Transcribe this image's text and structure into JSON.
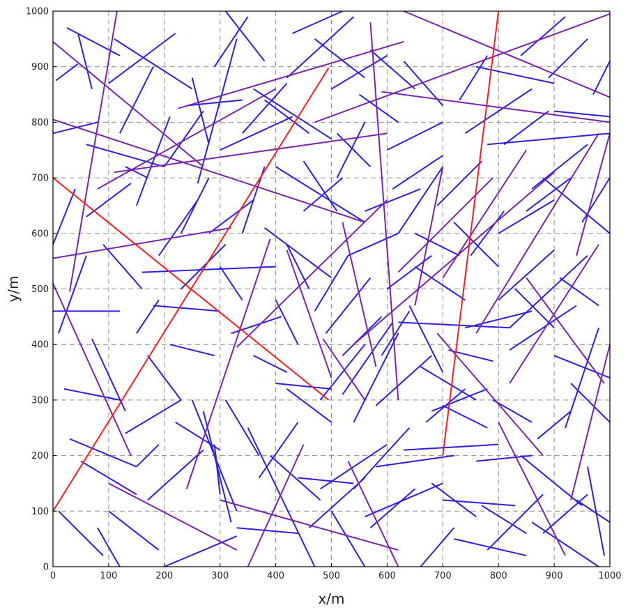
{
  "chart_data": {
    "type": "line",
    "title": "",
    "xlabel": "x/m",
    "ylabel": "y/m",
    "xlim": [
      0,
      1000
    ],
    "ylim": [
      0,
      1000
    ],
    "xticks": [
      0,
      100,
      200,
      300,
      400,
      500,
      600,
      700,
      800,
      900,
      1000
    ],
    "yticks": [
      0,
      100,
      200,
      300,
      400,
      500,
      600,
      700,
      800,
      900,
      1000
    ],
    "grid": true,
    "legend": "none",
    "colors": {
      "red": "#ff1a1a",
      "purple": "#7a22b0",
      "blue": "#2a1ee8"
    },
    "red_segments": [
      [
        0,
        100,
        495,
        898
      ],
      [
        0,
        700,
        495,
        300
      ],
      [
        700,
        200,
        800,
        1000
      ]
    ],
    "purple_segments": [
      [
        0,
        945,
        270,
        720
      ],
      [
        0,
        805,
        560,
        620
      ],
      [
        0,
        555,
        320,
        610
      ],
      [
        30,
        495,
        115,
        1000
      ],
      [
        0,
        510,
        140,
        200
      ],
      [
        225,
        825,
        630,
        945
      ],
      [
        110,
        710,
        600,
        780
      ],
      [
        80,
        680,
        400,
        860
      ],
      [
        630,
        1000,
        1000,
        845
      ],
      [
        590,
        855,
        1000,
        800
      ],
      [
        470,
        800,
        1000,
        995
      ],
      [
        330,
        395,
        600,
        660
      ],
      [
        620,
        0,
        530,
        190
      ],
      [
        620,
        530,
        790,
        700
      ],
      [
        420,
        570,
        500,
        340
      ],
      [
        485,
        410,
        560,
        300
      ],
      [
        570,
        980,
        620,
        300
      ],
      [
        540,
        400,
        900,
        710
      ],
      [
        300,
        120,
        620,
        30
      ],
      [
        240,
        140,
        390,
        590
      ],
      [
        700,
        520,
        850,
        750
      ],
      [
        650,
        470,
        700,
        720
      ],
      [
        690,
        420,
        880,
        200
      ],
      [
        760,
        420,
        980,
        780
      ],
      [
        800,
        260,
        920,
        20
      ],
      [
        850,
        520,
        990,
        330
      ],
      [
        930,
        120,
        1000,
        400
      ],
      [
        350,
        0,
        450,
        220
      ],
      [
        100,
        150,
        330,
        30
      ],
      [
        940,
        560,
        1000,
        780
      ],
      [
        820,
        330,
        980,
        580
      ],
      [
        520,
        620,
        580,
        360
      ]
    ],
    "blue_segments": [
      [
        0,
        460,
        120,
        460
      ],
      [
        10,
        420,
        60,
        560
      ],
      [
        25,
        970,
        120,
        920
      ],
      [
        45,
        960,
        70,
        860
      ],
      [
        60,
        760,
        200,
        720
      ],
      [
        70,
        410,
        130,
        280
      ],
      [
        90,
        580,
        160,
        500
      ],
      [
        100,
        870,
        220,
        960
      ],
      [
        120,
        780,
        180,
        900
      ],
      [
        130,
        720,
        170,
        700
      ],
      [
        150,
        650,
        210,
        810
      ],
      [
        160,
        530,
        400,
        540
      ],
      [
        180,
        470,
        300,
        460
      ],
      [
        200,
        720,
        270,
        820
      ],
      [
        230,
        600,
        280,
        700
      ],
      [
        240,
        830,
        340,
        840
      ],
      [
        260,
        690,
        330,
        950
      ],
      [
        290,
        900,
        350,
        990
      ],
      [
        300,
        750,
        430,
        810
      ],
      [
        310,
        1000,
        380,
        910
      ],
      [
        340,
        780,
        420,
        870
      ],
      [
        360,
        860,
        500,
        770
      ],
      [
        380,
        610,
        500,
        520
      ],
      [
        400,
        720,
        560,
        620
      ],
      [
        420,
        880,
        540,
        990
      ],
      [
        430,
        960,
        520,
        1000
      ],
      [
        450,
        640,
        520,
        700
      ],
      [
        470,
        460,
        530,
        560
      ],
      [
        480,
        300,
        560,
        400
      ],
      [
        500,
        860,
        600,
        920
      ],
      [
        510,
        700,
        560,
        800
      ],
      [
        520,
        380,
        590,
        450
      ],
      [
        540,
        260,
        620,
        420
      ],
      [
        560,
        640,
        660,
        680
      ],
      [
        570,
        930,
        650,
        860
      ],
      [
        580,
        180,
        720,
        200
      ],
      [
        600,
        750,
        700,
        800
      ],
      [
        620,
        440,
        820,
        430
      ],
      [
        630,
        210,
        800,
        220
      ],
      [
        650,
        600,
        730,
        560
      ],
      [
        660,
        360,
        760,
        300
      ],
      [
        680,
        280,
        780,
        320
      ],
      [
        700,
        120,
        830,
        110
      ],
      [
        720,
        50,
        850,
        20
      ],
      [
        740,
        780,
        860,
        860
      ],
      [
        760,
        900,
        900,
        870
      ],
      [
        780,
        760,
        1000,
        780
      ],
      [
        800,
        600,
        900,
        660
      ],
      [
        820,
        430,
        960,
        560
      ],
      [
        840,
        200,
        950,
        110
      ],
      [
        860,
        80,
        980,
        0
      ],
      [
        880,
        700,
        1000,
        600
      ],
      [
        900,
        380,
        1000,
        340
      ],
      [
        920,
        250,
        980,
        430
      ],
      [
        940,
        120,
        1000,
        80
      ],
      [
        960,
        180,
        990,
        20
      ],
      [
        50,
        190,
        150,
        130
      ],
      [
        80,
        70,
        120,
        0
      ],
      [
        100,
        100,
        190,
        30
      ],
      [
        130,
        240,
        230,
        300
      ],
      [
        150,
        180,
        190,
        220
      ],
      [
        170,
        120,
        270,
        210
      ],
      [
        200,
        0,
        330,
        55
      ],
      [
        220,
        260,
        300,
        210
      ],
      [
        250,
        300,
        330,
        100
      ],
      [
        270,
        280,
        320,
        80
      ],
      [
        290,
        220,
        300,
        130
      ],
      [
        310,
        300,
        370,
        200
      ],
      [
        330,
        70,
        440,
        60
      ],
      [
        350,
        250,
        470,
        0
      ],
      [
        370,
        160,
        440,
        260
      ],
      [
        390,
        200,
        480,
        120
      ],
      [
        400,
        330,
        500,
        320
      ],
      [
        420,
        320,
        500,
        260
      ],
      [
        440,
        160,
        540,
        150
      ],
      [
        460,
        70,
        560,
        160
      ],
      [
        480,
        140,
        600,
        220
      ],
      [
        500,
        100,
        560,
        0
      ],
      [
        520,
        310,
        610,
        440
      ],
      [
        540,
        140,
        640,
        250
      ],
      [
        560,
        90,
        700,
        150
      ],
      [
        580,
        290,
        680,
        380
      ],
      [
        600,
        500,
        680,
        560
      ],
      [
        620,
        600,
        700,
        720
      ],
      [
        640,
        470,
        700,
        350
      ],
      [
        660,
        0,
        720,
        70
      ],
      [
        680,
        150,
        760,
        90
      ],
      [
        700,
        290,
        780,
        250
      ],
      [
        720,
        620,
        800,
        540
      ],
      [
        740,
        430,
        860,
        460
      ],
      [
        760,
        190,
        860,
        200
      ],
      [
        780,
        30,
        880,
        130
      ],
      [
        800,
        480,
        900,
        570
      ],
      [
        820,
        390,
        940,
        470
      ],
      [
        840,
        920,
        920,
        990
      ],
      [
        860,
        680,
        960,
        760
      ],
      [
        880,
        60,
        960,
        130
      ],
      [
        900,
        820,
        1000,
        810
      ],
      [
        0,
        580,
        40,
        680
      ],
      [
        0,
        780,
        80,
        800
      ],
      [
        10,
        100,
        90,
        20
      ],
      [
        20,
        320,
        120,
        300
      ],
      [
        30,
        230,
        150,
        180
      ],
      [
        60,
        630,
        140,
        690
      ],
      [
        110,
        950,
        250,
        860
      ],
      [
        150,
        420,
        190,
        480
      ],
      [
        170,
        380,
        230,
        300
      ],
      [
        190,
        560,
        260,
        660
      ],
      [
        210,
        400,
        290,
        380
      ],
      [
        230,
        500,
        310,
        580
      ],
      [
        250,
        880,
        280,
        760
      ],
      [
        280,
        600,
        360,
        660
      ],
      [
        300,
        540,
        340,
        480
      ],
      [
        320,
        420,
        410,
        450
      ],
      [
        340,
        600,
        380,
        720
      ],
      [
        360,
        380,
        420,
        350
      ],
      [
        380,
        840,
        460,
        780
      ],
      [
        400,
        480,
        440,
        400
      ],
      [
        420,
        580,
        460,
        500
      ],
      [
        450,
        730,
        510,
        640
      ],
      [
        470,
        950,
        560,
        880
      ],
      [
        490,
        420,
        570,
        520
      ],
      [
        510,
        780,
        570,
        720
      ],
      [
        530,
        560,
        620,
        600
      ],
      [
        550,
        850,
        620,
        800
      ],
      [
        570,
        70,
        650,
        140
      ],
      [
        590,
        380,
        640,
        460
      ],
      [
        610,
        680,
        700,
        740
      ],
      [
        630,
        910,
        700,
        830
      ],
      [
        650,
        540,
        740,
        480
      ],
      [
        670,
        260,
        740,
        320
      ],
      [
        690,
        650,
        770,
        730
      ],
      [
        710,
        390,
        790,
        370
      ],
      [
        730,
        840,
        780,
        920
      ],
      [
        750,
        560,
        810,
        640
      ],
      [
        770,
        110,
        850,
        60
      ],
      [
        790,
        300,
        860,
        260
      ],
      [
        810,
        760,
        890,
        820
      ],
      [
        830,
        500,
        900,
        430
      ],
      [
        850,
        640,
        930,
        700
      ],
      [
        870,
        230,
        930,
        280
      ],
      [
        890,
        880,
        960,
        950
      ],
      [
        910,
        520,
        980,
        470
      ],
      [
        930,
        330,
        1000,
        260
      ],
      [
        950,
        620,
        1000,
        700
      ],
      [
        970,
        850,
        1000,
        910
      ],
      [
        5,
        875,
        45,
        905
      ]
    ]
  }
}
